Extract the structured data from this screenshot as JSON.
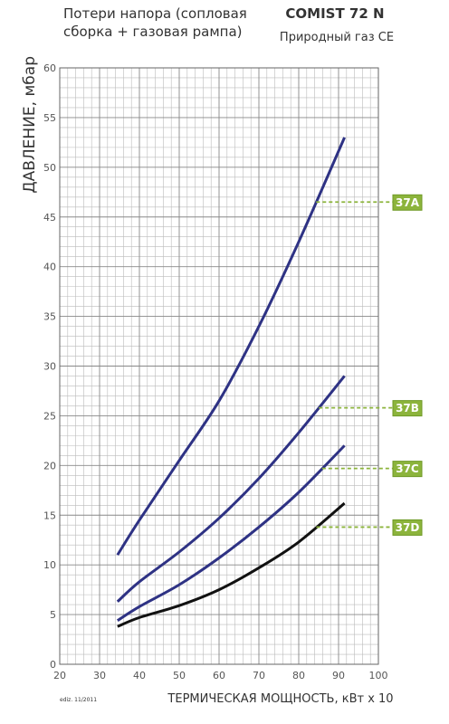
{
  "chart_data": {
    "type": "line",
    "subtitle_lines": [
      "Потери напора (сопловая",
      "сборка + газовая рампа)"
    ],
    "title": "COMIST 72 N",
    "fuel": "Природный газ СЕ",
    "y_label": "ДАВЛЕНИЕ, мбар",
    "x_label": "ТЕРМИЧЕСКАЯ МОЩНОСТЬ, кВт x 10",
    "edition": "ediz. 11/2011",
    "x": [
      34.5,
      40,
      50,
      60,
      70,
      80,
      91.5
    ],
    "series": [
      {
        "name": "37A",
        "color": "#2e3284",
        "values": [
          11,
          14.5,
          20.5,
          26.5,
          34,
          42.5,
          53
        ],
        "marker": 46.5
      },
      {
        "name": "37B",
        "color": "#2e3284",
        "values": [
          6.3,
          8.3,
          11.3,
          14.7,
          18.7,
          23.3,
          29
        ],
        "marker": 25.8
      },
      {
        "name": "37C",
        "color": "#2e3284",
        "values": [
          4.4,
          5.8,
          8,
          10.7,
          13.8,
          17.3,
          22
        ],
        "marker": 19.7
      },
      {
        "name": "37D",
        "color": "#111111",
        "values": [
          3.8,
          4.7,
          5.9,
          7.5,
          9.7,
          12.3,
          16.2
        ],
        "marker": 13.8
      }
    ],
    "marker_color": "#8cb43c",
    "xlim": [
      20,
      100
    ],
    "xticks": [
      20,
      30,
      40,
      50,
      60,
      70,
      80,
      90,
      100
    ],
    "ylim": [
      0,
      60
    ],
    "yticks": [
      0,
      5,
      10,
      15,
      20,
      25,
      30,
      35,
      40,
      45,
      50,
      55,
      60
    ],
    "grid": true,
    "minor_grid": true
  }
}
